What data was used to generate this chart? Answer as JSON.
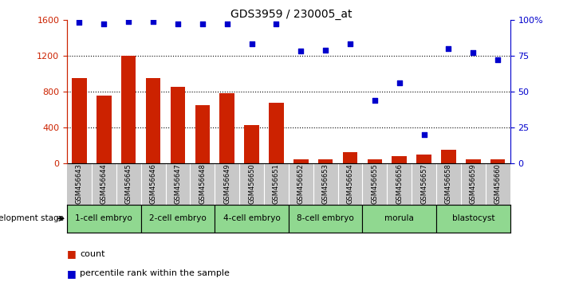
{
  "title": "GDS3959 / 230005_at",
  "samples": [
    "GSM456643",
    "GSM456644",
    "GSM456645",
    "GSM456646",
    "GSM456647",
    "GSM456648",
    "GSM456649",
    "GSM456650",
    "GSM456651",
    "GSM456652",
    "GSM456653",
    "GSM456654",
    "GSM456655",
    "GSM456656",
    "GSM456657",
    "GSM456658",
    "GSM456659",
    "GSM456660"
  ],
  "counts": [
    950,
    760,
    1200,
    950,
    850,
    650,
    780,
    430,
    680,
    50,
    50,
    130,
    50,
    80,
    100,
    150,
    50,
    50
  ],
  "percentiles": [
    98,
    97,
    99,
    99,
    97,
    97,
    97,
    83,
    97,
    78,
    79,
    83,
    44,
    56,
    20,
    80,
    77,
    72
  ],
  "stages": [
    {
      "label": "1-cell embryo",
      "start": 0,
      "end": 3
    },
    {
      "label": "2-cell embryo",
      "start": 3,
      "end": 6
    },
    {
      "label": "4-cell embryo",
      "start": 6,
      "end": 9
    },
    {
      "label": "8-cell embryo",
      "start": 9,
      "end": 12
    },
    {
      "label": "morula",
      "start": 12,
      "end": 15
    },
    {
      "label": "blastocyst",
      "start": 15,
      "end": 18
    }
  ],
  "bar_color": "#cc2200",
  "dot_color": "#0000cc",
  "left_ylim": [
    0,
    1600
  ],
  "right_ylim": [
    0,
    100
  ],
  "left_yticks": [
    0,
    400,
    800,
    1200,
    1600
  ],
  "right_yticks": [
    0,
    25,
    50,
    75,
    100
  ],
  "right_yticklabels": [
    "0",
    "25",
    "50",
    "75",
    "100%"
  ],
  "legend_count_label": "count",
  "legend_pct_label": "percentile rank within the sample",
  "dev_stage_label": "development stage"
}
